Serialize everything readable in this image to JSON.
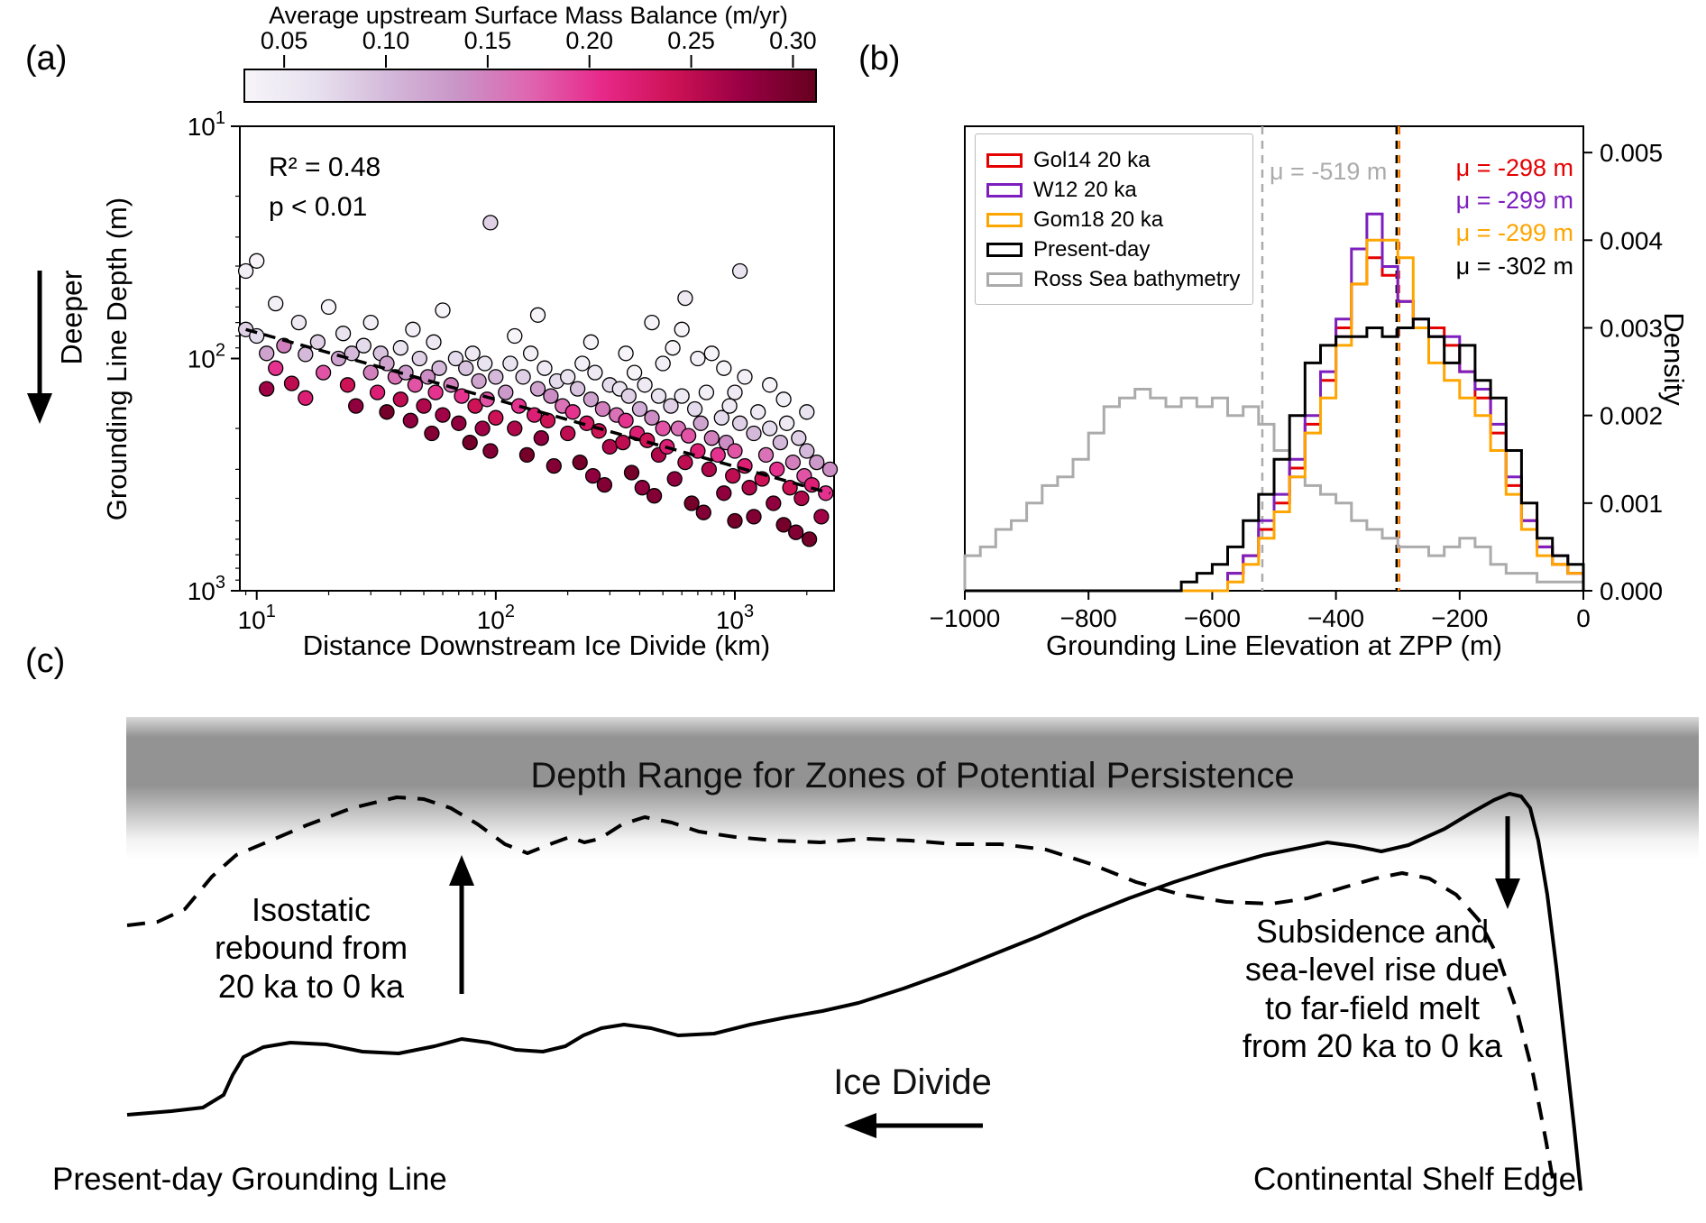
{
  "panel_a": {
    "label": "(a)",
    "deeper_label": "Deeper"
  },
  "panel_b": {
    "label": "(b)"
  },
  "panel_c": {
    "label": "(c)",
    "band_title": "Depth Range for Zones of Potential Persistence",
    "isostatic_label": "Isostatic\nrebound from\n20 ka to 0 ka",
    "subsidence_label": "Subsidence and\nsea-level rise due\nto far-field melt\nfrom 20 ka to 0 ka",
    "ice_divide_label": "Ice Divide",
    "grounding_line_label": "Present-day Grounding Line",
    "shelf_edge_label": "Continental Shelf Edge"
  },
  "chart_data": [
    {
      "type": "scatter",
      "title": "",
      "xlabel": "Distance Downstream Ice Divide (km)",
      "ylabel": "Grounding Line Depth (m)",
      "xscale": "log",
      "yscale": "log",
      "y_axis_depth_down": true,
      "xlim": [
        8.5,
        2600
      ],
      "ylim": [
        10,
        1000
      ],
      "x_ticks": [
        10,
        100,
        1000
      ],
      "y_ticks": [
        10,
        100,
        1000
      ],
      "r_squared": "R² = 0.48",
      "p_value": "p < 0.01",
      "trend_line": {
        "x": [
          9,
          2500
        ],
        "y": [
          75,
          380
        ],
        "style": "dashed"
      },
      "color_label": "Average upstream Surface Mass Balance (m/yr)",
      "color_ticks": [
        0.05,
        0.1,
        0.15,
        0.2,
        0.25,
        0.3
      ],
      "color_range": [
        0.03,
        0.31
      ],
      "colormap": [
        "#f7f4f9",
        "#e7e1ef",
        "#d4b9da",
        "#c994c7",
        "#df65b0",
        "#e7298a",
        "#ce1256",
        "#980043",
        "#67001f"
      ],
      "points": [
        [
          9,
          42,
          0.04
        ],
        [
          9,
          75,
          0.08
        ],
        [
          10,
          38,
          0.03
        ],
        [
          10,
          80,
          0.07
        ],
        [
          11,
          95,
          0.12
        ],
        [
          11,
          135,
          0.27
        ],
        [
          12,
          58,
          0.04
        ],
        [
          12,
          110,
          0.2
        ],
        [
          13,
          88,
          0.15
        ],
        [
          14,
          128,
          0.25
        ],
        [
          15,
          70,
          0.05
        ],
        [
          16,
          96,
          0.1
        ],
        [
          16,
          148,
          0.22
        ],
        [
          18,
          85,
          0.08
        ],
        [
          19,
          115,
          0.18
        ],
        [
          20,
          60,
          0.03
        ],
        [
          22,
          100,
          0.12
        ],
        [
          23,
          78,
          0.06
        ],
        [
          24,
          130,
          0.24
        ],
        [
          25,
          95,
          0.1
        ],
        [
          26,
          160,
          0.28
        ],
        [
          28,
          88,
          0.07
        ],
        [
          30,
          115,
          0.15
        ],
        [
          30,
          70,
          0.04
        ],
        [
          32,
          140,
          0.22
        ],
        [
          33,
          95,
          0.09
        ],
        [
          35,
          170,
          0.3
        ],
        [
          35,
          105,
          0.12
        ],
        [
          38,
          120,
          0.16
        ],
        [
          40,
          90,
          0.06
        ],
        [
          40,
          150,
          0.25
        ],
        [
          42,
          115,
          0.13
        ],
        [
          44,
          185,
          0.28
        ],
        [
          45,
          75,
          0.04
        ],
        [
          46,
          130,
          0.18
        ],
        [
          48,
          100,
          0.08
        ],
        [
          50,
          160,
          0.26
        ],
        [
          52,
          120,
          0.14
        ],
        [
          54,
          210,
          0.29
        ],
        [
          55,
          85,
          0.05
        ],
        [
          56,
          140,
          0.2
        ],
        [
          58,
          110,
          0.1
        ],
        [
          60,
          175,
          0.27
        ],
        [
          60,
          62,
          0.03
        ],
        [
          65,
          130,
          0.15
        ],
        [
          68,
          100,
          0.07
        ],
        [
          70,
          190,
          0.28
        ],
        [
          72,
          145,
          0.2
        ],
        [
          75,
          110,
          0.09
        ],
        [
          78,
          230,
          0.3
        ],
        [
          80,
          95,
          0.05
        ],
        [
          82,
          160,
          0.24
        ],
        [
          85,
          125,
          0.12
        ],
        [
          88,
          200,
          0.27
        ],
        [
          90,
          105,
          0.06
        ],
        [
          92,
          150,
          0.18
        ],
        [
          95,
          26,
          0.08
        ],
        [
          95,
          250,
          0.29
        ],
        [
          100,
          120,
          0.1
        ],
        [
          100,
          180,
          0.24
        ],
        [
          110,
          140,
          0.13
        ],
        [
          115,
          105,
          0.06
        ],
        [
          120,
          200,
          0.26
        ],
        [
          125,
          160,
          0.2
        ],
        [
          130,
          120,
          0.08
        ],
        [
          135,
          260,
          0.3
        ],
        [
          140,
          95,
          0.04
        ],
        [
          145,
          175,
          0.22
        ],
        [
          150,
          135,
          0.12
        ],
        [
          155,
          220,
          0.28
        ],
        [
          160,
          110,
          0.05
        ],
        [
          165,
          185,
          0.24
        ],
        [
          170,
          145,
          0.14
        ],
        [
          175,
          290,
          0.29
        ],
        [
          180,
          125,
          0.07
        ],
        [
          150,
          65,
          0.02
        ],
        [
          120,
          80,
          0.03
        ],
        [
          190,
          160,
          0.16
        ],
        [
          200,
          120,
          0.06
        ],
        [
          200,
          210,
          0.25
        ],
        [
          210,
          170,
          0.2
        ],
        [
          220,
          135,
          0.09
        ],
        [
          225,
          280,
          0.3
        ],
        [
          230,
          105,
          0.04
        ],
        [
          240,
          190,
          0.23
        ],
        [
          250,
          150,
          0.12
        ],
        [
          255,
          320,
          0.28
        ],
        [
          260,
          115,
          0.05
        ],
        [
          270,
          205,
          0.24
        ],
        [
          280,
          165,
          0.15
        ],
        [
          285,
          350,
          0.29
        ],
        [
          300,
          130,
          0.07
        ],
        [
          300,
          240,
          0.26
        ],
        [
          250,
          85,
          0.03
        ],
        [
          320,
          175,
          0.16
        ],
        [
          330,
          135,
          0.06
        ],
        [
          340,
          230,
          0.25
        ],
        [
          350,
          185,
          0.2
        ],
        [
          360,
          145,
          0.08
        ],
        [
          370,
          310,
          0.3
        ],
        [
          380,
          115,
          0.03
        ],
        [
          390,
          210,
          0.22
        ],
        [
          400,
          165,
          0.11
        ],
        [
          410,
          360,
          0.28
        ],
        [
          420,
          130,
          0.05
        ],
        [
          430,
          225,
          0.24
        ],
        [
          450,
          180,
          0.14
        ],
        [
          460,
          390,
          0.29
        ],
        [
          480,
          145,
          0.06
        ],
        [
          480,
          260,
          0.26
        ],
        [
          500,
          200,
          0.18
        ],
        [
          500,
          105,
          0.04
        ],
        [
          350,
          95,
          0.03
        ],
        [
          450,
          70,
          0.02
        ],
        [
          520,
          240,
          0.22
        ],
        [
          540,
          160,
          0.08
        ],
        [
          560,
          330,
          0.28
        ],
        [
          580,
          200,
          0.16
        ],
        [
          600,
          145,
          0.05
        ],
        [
          620,
          280,
          0.25
        ],
        [
          640,
          215,
          0.18
        ],
        [
          660,
          420,
          0.3
        ],
        [
          680,
          165,
          0.07
        ],
        [
          700,
          250,
          0.22
        ],
        [
          720,
          190,
          0.12
        ],
        [
          740,
          460,
          0.29
        ],
        [
          760,
          140,
          0.04
        ],
        [
          780,
          300,
          0.26
        ],
        [
          800,
          220,
          0.15
        ],
        [
          550,
          90,
          0.03
        ],
        [
          620,
          55,
          0.05
        ],
        [
          600,
          75,
          0.02
        ],
        [
          700,
          100,
          0.04
        ],
        [
          800,
          95,
          0.03
        ],
        [
          850,
          260,
          0.2
        ],
        [
          880,
          180,
          0.07
        ],
        [
          900,
          380,
          0.28
        ],
        [
          920,
          230,
          0.14
        ],
        [
          950,
          160,
          0.05
        ],
        [
          980,
          320,
          0.25
        ],
        [
          1000,
          250,
          0.18
        ],
        [
          1000,
          500,
          0.3
        ],
        [
          1050,
          190,
          0.08
        ],
        [
          1100,
          290,
          0.22
        ],
        [
          1150,
          360,
          0.26
        ],
        [
          1200,
          210,
          0.1
        ],
        [
          1200,
          480,
          0.29
        ],
        [
          1250,
          170,
          0.05
        ],
        [
          1300,
          330,
          0.24
        ],
        [
          900,
          110,
          0.03
        ],
        [
          1050,
          42,
          0.06
        ],
        [
          1100,
          120,
          0.04
        ],
        [
          1000,
          140,
          0.05
        ],
        [
          1350,
          260,
          0.16
        ],
        [
          1400,
          200,
          0.07
        ],
        [
          1450,
          420,
          0.28
        ],
        [
          1500,
          300,
          0.2
        ],
        [
          1550,
          230,
          0.1
        ],
        [
          1600,
          520,
          0.3
        ],
        [
          1650,
          190,
          0.05
        ],
        [
          1700,
          360,
          0.24
        ],
        [
          1750,
          280,
          0.15
        ],
        [
          1800,
          560,
          0.29
        ],
        [
          1850,
          220,
          0.08
        ],
        [
          1900,
          400,
          0.26
        ],
        [
          1950,
          320,
          0.18
        ],
        [
          2000,
          250,
          0.1
        ],
        [
          2050,
          600,
          0.3
        ],
        [
          2100,
          350,
          0.22
        ],
        [
          2200,
          280,
          0.13
        ],
        [
          2300,
          480,
          0.27
        ],
        [
          2400,
          380,
          0.2
        ],
        [
          2500,
          300,
          0.14
        ],
        [
          1400,
          130,
          0.03
        ],
        [
          1600,
          150,
          0.04
        ],
        [
          2000,
          170,
          0.06
        ]
      ]
    },
    {
      "type": "histogram",
      "xlabel": "Grounding Line Elevation at ZPP (m)",
      "ylabel": "Density",
      "xlim": [
        -1000,
        0
      ],
      "ylim": [
        0,
        0.0053
      ],
      "x_ticks": [
        -1000,
        -800,
        -600,
        -400,
        -200,
        0
      ],
      "y_ticks": [
        0,
        0.001,
        0.002,
        0.003,
        0.004,
        0.005
      ],
      "y_tick_labels": [
        "0.000",
        "0.001",
        "0.002",
        "0.003",
        "0.004",
        "0.005"
      ],
      "bin_start": -1000,
      "bin_width": 25,
      "draw_order": [
        4,
        0,
        1,
        2,
        3
      ],
      "series": [
        {
          "name": "Gol14 20 ka",
          "color": "#e50000",
          "mean_m": -298,
          "mean_label": "μ = -298 m",
          "values": [
            0,
            0,
            0,
            0,
            0,
            0,
            0,
            0,
            0,
            0,
            0,
            0,
            0,
            0,
            0,
            0,
            0,
            0.0002,
            0.0004,
            0.0007,
            0.001,
            0.0014,
            0.0019,
            0.0024,
            0.003,
            0.0035,
            0.0038,
            0.0036,
            0.0033,
            0.003,
            0.003,
            0.0028,
            0.0025,
            0.0022,
            0.0018,
            0.0012,
            0.0008,
            0.0005,
            0.0003,
            0.0002
          ]
        },
        {
          "name": "W12 20 ka",
          "color": "#7d1fbe",
          "mean_m": -299,
          "mean_label": "μ = -299 m",
          "values": [
            0,
            0,
            0,
            0,
            0,
            0,
            0,
            0,
            0,
            0,
            0,
            0,
            0,
            0,
            0,
            0,
            0,
            0.0002,
            0.0004,
            0.0008,
            0.0011,
            0.0015,
            0.002,
            0.0025,
            0.0031,
            0.0039,
            0.0043,
            0.0037,
            0.0033,
            0.0031,
            0.0029,
            0.0029,
            0.0025,
            0.0023,
            0.0019,
            0.0013,
            0.0008,
            0.0005,
            0.0004,
            0.0002
          ]
        },
        {
          "name": "Gom18 20 ka",
          "color": "#ffa500",
          "mean_m": -299,
          "mean_label": "μ = -299 m",
          "values": [
            0,
            0,
            0,
            0,
            0,
            0,
            0,
            0,
            0,
            0,
            0,
            0,
            0,
            0,
            0,
            0,
            0,
            0.0001,
            0.0003,
            0.0006,
            0.0009,
            0.0013,
            0.0018,
            0.0022,
            0.0028,
            0.0035,
            0.004,
            0.004,
            0.0038,
            0.003,
            0.0026,
            0.0024,
            0.0022,
            0.002,
            0.0016,
            0.0011,
            0.0007,
            0.0004,
            0.0003,
            0.0002
          ]
        },
        {
          "name": "Present-day",
          "color": "#000000",
          "mean_m": -302,
          "mean_label": "μ = -302 m",
          "values": [
            0,
            0,
            0,
            0,
            0,
            0,
            0,
            0,
            0,
            0,
            0,
            0,
            0,
            0,
            0.0001,
            0.0002,
            0.0003,
            0.0005,
            0.0008,
            0.0011,
            0.0015,
            0.002,
            0.0026,
            0.0028,
            0.0029,
            0.0029,
            0.003,
            0.0029,
            0.003,
            0.0031,
            0.0029,
            0.0026,
            0.0028,
            0.0024,
            0.0022,
            0.0016,
            0.001,
            0.0006,
            0.0004,
            0.0003
          ]
        },
        {
          "name": "Ross Sea bathymetry",
          "color": "#ababab",
          "mean_m": -519,
          "mean_label": "μ = -519 m",
          "values": [
            0.0004,
            0.0005,
            0.0007,
            0.0008,
            0.001,
            0.0012,
            0.0013,
            0.0015,
            0.0018,
            0.0021,
            0.0022,
            0.0023,
            0.0022,
            0.0021,
            0.0022,
            0.0021,
            0.0022,
            0.002,
            0.0021,
            0.0019,
            0.0016,
            0.0013,
            0.0012,
            0.0011,
            0.001,
            0.0008,
            0.0007,
            0.0006,
            0.0005,
            0.0005,
            0.0004,
            0.0005,
            0.0006,
            0.0005,
            0.0003,
            0.0002,
            0.0002,
            0.0001,
            0.0001,
            0.0001
          ]
        }
      ]
    }
  ]
}
